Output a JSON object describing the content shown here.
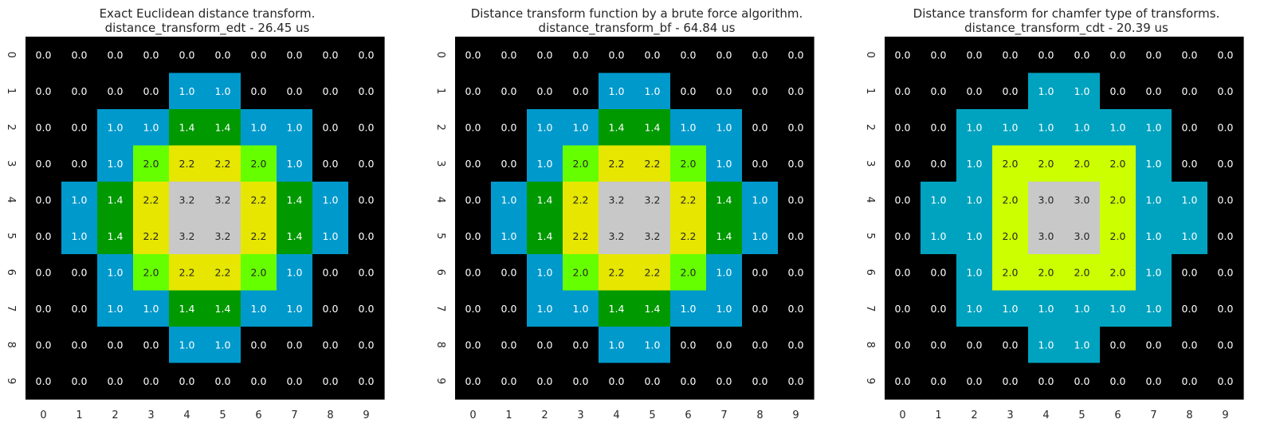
{
  "chart_data": [
    {
      "type": "heatmap",
      "title": "Exact Euclidean distance transform.",
      "subtitle": "distance_transform_edt - 26.45 us",
      "x_ticks": [
        "0",
        "1",
        "2",
        "3",
        "4",
        "5",
        "6",
        "7",
        "8",
        "9"
      ],
      "y_ticks": [
        "0",
        "1",
        "2",
        "3",
        "4",
        "5",
        "6",
        "7",
        "8",
        "9"
      ],
      "values": [
        [
          0,
          0,
          0,
          0,
          0,
          0,
          0,
          0,
          0,
          0
        ],
        [
          0,
          0,
          0,
          0,
          1.0,
          1.0,
          0,
          0,
          0,
          0
        ],
        [
          0,
          0,
          1.0,
          1.0,
          1.4,
          1.4,
          1.0,
          1.0,
          0,
          0
        ],
        [
          0,
          0,
          1.0,
          2.0,
          2.2,
          2.2,
          2.0,
          1.0,
          0,
          0
        ],
        [
          0,
          1.0,
          1.4,
          2.2,
          3.2,
          3.2,
          2.2,
          1.4,
          1.0,
          0
        ],
        [
          0,
          1.0,
          1.4,
          2.2,
          3.2,
          3.2,
          2.2,
          1.4,
          1.0,
          0
        ],
        [
          0,
          0,
          1.0,
          2.0,
          2.2,
          2.2,
          2.0,
          1.0,
          0,
          0
        ],
        [
          0,
          0,
          1.0,
          1.0,
          1.4,
          1.4,
          1.0,
          1.0,
          0,
          0
        ],
        [
          0,
          0,
          0,
          0,
          1.0,
          1.0,
          0,
          0,
          0,
          0
        ],
        [
          0,
          0,
          0,
          0,
          0,
          0,
          0,
          0,
          0,
          0
        ]
      ],
      "color_map": {
        "0.0": "#000000",
        "1.0": "#0099cc",
        "1.4": "#009900",
        "2.0": "#66ff00",
        "2.2": "#e6e600",
        "3.2": "#c8c8c8"
      }
    },
    {
      "type": "heatmap",
      "title": "Distance transform function by a brute force algorithm.",
      "subtitle": "distance_transform_bf - 64.84 us",
      "x_ticks": [
        "0",
        "1",
        "2",
        "3",
        "4",
        "5",
        "6",
        "7",
        "8",
        "9"
      ],
      "y_ticks": [
        "0",
        "1",
        "2",
        "3",
        "4",
        "5",
        "6",
        "7",
        "8",
        "9"
      ],
      "values": [
        [
          0,
          0,
          0,
          0,
          0,
          0,
          0,
          0,
          0,
          0
        ],
        [
          0,
          0,
          0,
          0,
          1.0,
          1.0,
          0,
          0,
          0,
          0
        ],
        [
          0,
          0,
          1.0,
          1.0,
          1.4,
          1.4,
          1.0,
          1.0,
          0,
          0
        ],
        [
          0,
          0,
          1.0,
          2.0,
          2.2,
          2.2,
          2.0,
          1.0,
          0,
          0
        ],
        [
          0,
          1.0,
          1.4,
          2.2,
          3.2,
          3.2,
          2.2,
          1.4,
          1.0,
          0
        ],
        [
          0,
          1.0,
          1.4,
          2.2,
          3.2,
          3.2,
          2.2,
          1.4,
          1.0,
          0
        ],
        [
          0,
          0,
          1.0,
          2.0,
          2.2,
          2.2,
          2.0,
          1.0,
          0,
          0
        ],
        [
          0,
          0,
          1.0,
          1.0,
          1.4,
          1.4,
          1.0,
          1.0,
          0,
          0
        ],
        [
          0,
          0,
          0,
          0,
          1.0,
          1.0,
          0,
          0,
          0,
          0
        ],
        [
          0,
          0,
          0,
          0,
          0,
          0,
          0,
          0,
          0,
          0
        ]
      ],
      "color_map": {
        "0.0": "#000000",
        "1.0": "#0099cc",
        "1.4": "#009900",
        "2.0": "#66ff00",
        "2.2": "#e6e600",
        "3.2": "#c8c8c8"
      }
    },
    {
      "type": "heatmap",
      "title": "Distance transform for chamfer type of transforms.",
      "subtitle": "distance_transform_cdt - 20.39 us",
      "x_ticks": [
        "0",
        "1",
        "2",
        "3",
        "4",
        "5",
        "6",
        "7",
        "8",
        "9"
      ],
      "y_ticks": [
        "0",
        "1",
        "2",
        "3",
        "4",
        "5",
        "6",
        "7",
        "8",
        "9"
      ],
      "values": [
        [
          0,
          0,
          0,
          0,
          0,
          0,
          0,
          0,
          0,
          0
        ],
        [
          0,
          0,
          0,
          0,
          1.0,
          1.0,
          0,
          0,
          0,
          0
        ],
        [
          0,
          0,
          1.0,
          1.0,
          1.0,
          1.0,
          1.0,
          1.0,
          0,
          0
        ],
        [
          0,
          0,
          1.0,
          2.0,
          2.0,
          2.0,
          2.0,
          1.0,
          0,
          0
        ],
        [
          0,
          1.0,
          1.0,
          2.0,
          3.0,
          3.0,
          2.0,
          1.0,
          1.0,
          0
        ],
        [
          0,
          1.0,
          1.0,
          2.0,
          3.0,
          3.0,
          2.0,
          1.0,
          1.0,
          0
        ],
        [
          0,
          0,
          1.0,
          2.0,
          2.0,
          2.0,
          2.0,
          1.0,
          0,
          0
        ],
        [
          0,
          0,
          1.0,
          1.0,
          1.0,
          1.0,
          1.0,
          1.0,
          0,
          0
        ],
        [
          0,
          0,
          0,
          0,
          1.0,
          1.0,
          0,
          0,
          0,
          0
        ],
        [
          0,
          0,
          0,
          0,
          0,
          0,
          0,
          0,
          0,
          0
        ]
      ],
      "color_map": {
        "0.0": "#000000",
        "1.0": "#00a3bf",
        "2.0": "#ccff00",
        "3.0": "#c8c8c8"
      }
    }
  ]
}
